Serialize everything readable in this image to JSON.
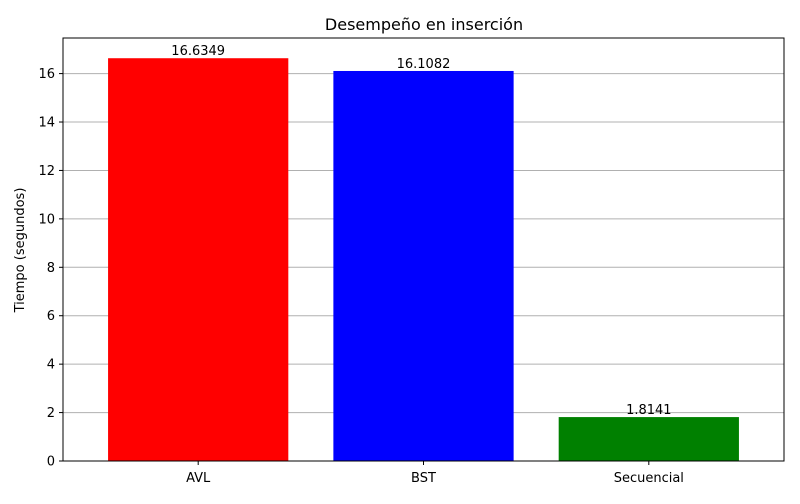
{
  "chart_data": {
    "type": "bar",
    "title": "Desempeño en inserción",
    "xlabel": "",
    "ylabel": "Tiempo (segundos)",
    "categories": [
      "AVL",
      "BST",
      "Secuencial"
    ],
    "values": [
      16.6349,
      16.1082,
      1.8141
    ],
    "data_labels": [
      "16.6349",
      "16.1082",
      "1.8141"
    ],
    "colors": [
      "#ff0000",
      "#0000ff",
      "#008000"
    ],
    "ylim": [
      0,
      17.47
    ],
    "yticks": [
      0,
      2,
      4,
      6,
      8,
      10,
      12,
      14,
      16
    ],
    "grid": "y-axis",
    "legend": "none"
  }
}
